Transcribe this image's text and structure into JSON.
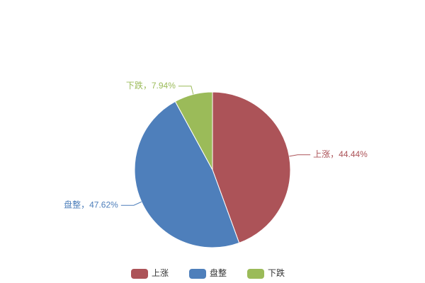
{
  "chart_data": {
    "type": "pie",
    "categories": [
      "上涨",
      "盘整",
      "下跌"
    ],
    "values": [
      44.44,
      47.62,
      7.94
    ],
    "value_labels": [
      "上涨，44.44%",
      "盘整，47.62%",
      "下跌，7.94%"
    ],
    "colors": [
      "#ac5358",
      "#4e7fbb",
      "#9bbb59"
    ],
    "legend": "bottom"
  }
}
